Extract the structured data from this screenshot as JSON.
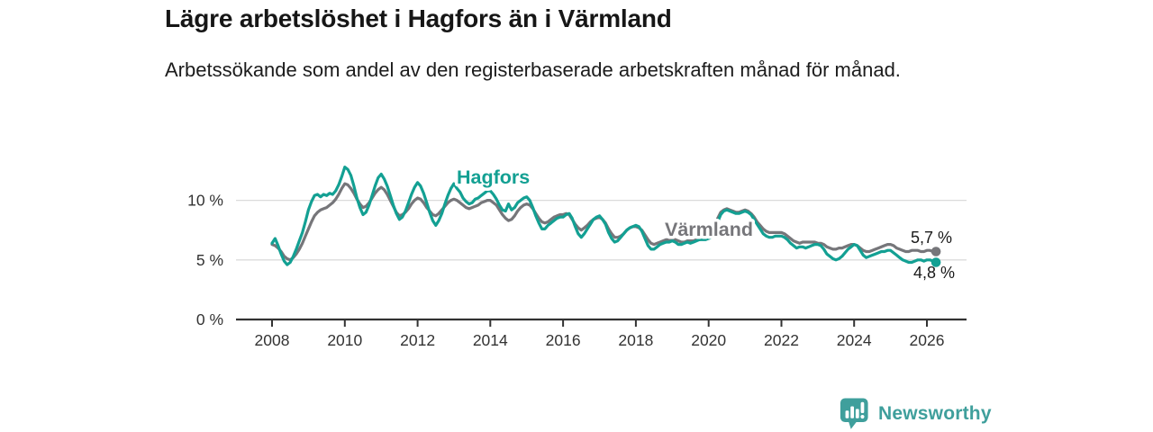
{
  "header": {
    "title": "Lägre arbetslöshet i Hagfors än i Värmland",
    "subtitle": "Arbetssökande som andel av den registerbaserade arbetskraften månad för månad."
  },
  "footer": {
    "brand": "Newsworthy",
    "brand_color": "#3f9f9c",
    "logo_icon": "bar-chart-speech-bubble"
  },
  "chart_data": {
    "type": "line",
    "title": "Lägre arbetslöshet i Hagfors än i Värmland",
    "subtitle": "Arbetssökande som andel av den registerbaserade arbetskraften månad för månad.",
    "unit": "%",
    "grid": "horizontal-only",
    "legend": "inline-labels",
    "x_unit": "month",
    "x_range": {
      "start_year": 2008,
      "start_month": 1,
      "end_year": 2026,
      "end_month": 4
    },
    "xlim_years": [
      2007.0,
      2027.1
    ],
    "ylim": [
      0,
      13.8
    ],
    "x_tick_labels": [
      "2008",
      "2010",
      "2012",
      "2014",
      "2016",
      "2018",
      "2020",
      "2022",
      "2024",
      "2026"
    ],
    "y_ticks": [
      0,
      5,
      10
    ],
    "y_tick_labels": [
      "0 %",
      "5 %",
      "10 %"
    ],
    "colors": {
      "hagfors": "#13a093",
      "varmland": "#76767a",
      "grid": "#dbdbdb",
      "axis": "#333333"
    },
    "series": [
      {
        "name": "Hagfors",
        "color": "#13a093",
        "end_label": "4,8 %",
        "last_value": 4.8,
        "values": [
          6.4,
          6.8,
          6.2,
          5.5,
          4.9,
          4.6,
          4.8,
          5.3,
          5.9,
          6.6,
          7.3,
          8.2,
          9.2,
          9.9,
          10.4,
          10.5,
          10.3,
          10.5,
          10.4,
          10.6,
          10.5,
          10.8,
          11.3,
          12.0,
          12.8,
          12.6,
          12.1,
          11.2,
          10.2,
          9.4,
          8.8,
          9.0,
          9.6,
          10.4,
          11.2,
          11.9,
          12.2,
          11.8,
          11.2,
          10.4,
          9.6,
          8.9,
          8.4,
          8.6,
          9.1,
          9.8,
          10.5,
          11.1,
          11.5,
          11.2,
          10.6,
          9.8,
          9.0,
          8.3,
          7.9,
          8.3,
          8.9,
          9.7,
          10.4,
          11.0,
          11.4,
          11.0,
          10.7,
          10.2,
          9.9,
          9.7,
          9.8,
          10.1,
          10.2,
          10.4,
          10.6,
          10.8,
          10.8,
          10.5,
          10.1,
          9.6,
          9.2,
          9.1,
          9.7,
          9.2,
          9.4,
          9.8,
          10.0,
          10.2,
          10.3,
          10.0,
          9.4,
          8.7,
          8.1,
          7.6,
          7.6,
          7.9,
          8.1,
          8.3,
          8.5,
          8.6,
          8.6,
          8.8,
          8.9,
          8.5,
          7.8,
          7.2,
          6.9,
          7.2,
          7.6,
          8.0,
          8.4,
          8.6,
          8.7,
          8.4,
          8.0,
          7.3,
          6.8,
          6.5,
          6.6,
          6.9,
          7.2,
          7.5,
          7.7,
          7.8,
          7.9,
          7.8,
          7.4,
          6.8,
          6.2,
          5.9,
          5.9,
          6.1,
          6.3,
          6.4,
          6.5,
          6.5,
          6.6,
          6.5,
          6.3,
          6.3,
          6.4,
          6.5,
          6.4,
          6.5,
          6.6,
          6.7,
          6.7,
          6.7,
          6.8,
          6.9,
          7.4,
          8.2,
          8.8,
          9.1,
          9.2,
          9.1,
          9.0,
          8.9,
          8.9,
          9.0,
          9.1,
          9.0,
          8.8,
          8.4,
          8.0,
          7.6,
          7.2,
          7.0,
          6.9,
          6.9,
          7.0,
          7.0,
          7.0,
          6.9,
          6.7,
          6.4,
          6.2,
          6.0,
          6.1,
          6.1,
          6.0,
          6.1,
          6.2,
          6.3,
          6.3,
          6.2,
          5.9,
          5.5,
          5.3,
          5.1,
          5.0,
          5.1,
          5.3,
          5.6,
          5.9,
          6.1,
          6.3,
          6.2,
          5.8,
          5.4,
          5.2,
          5.3,
          5.4,
          5.5,
          5.6,
          5.7,
          5.7,
          5.8,
          5.8,
          5.6,
          5.4,
          5.2,
          5.0,
          4.9,
          4.8,
          4.8,
          4.9,
          5.0,
          5.0,
          4.9,
          5.0,
          5.0,
          4.9,
          4.8
        ]
      },
      {
        "name": "Värmland",
        "color": "#76767a",
        "end_label": "5,7 %",
        "last_value": 5.7,
        "values": [
          6.3,
          6.2,
          6.0,
          5.7,
          5.3,
          5.1,
          5.0,
          5.2,
          5.5,
          5.9,
          6.4,
          7.0,
          7.6,
          8.2,
          8.7,
          9.0,
          9.2,
          9.3,
          9.4,
          9.6,
          9.8,
          10.1,
          10.5,
          11.0,
          11.4,
          11.3,
          11.0,
          10.6,
          10.1,
          9.7,
          9.4,
          9.5,
          9.8,
          10.2,
          10.6,
          10.9,
          11.1,
          10.9,
          10.5,
          10.0,
          9.5,
          9.0,
          8.7,
          8.8,
          9.0,
          9.3,
          9.7,
          10.0,
          10.2,
          10.1,
          9.8,
          9.4,
          9.1,
          8.8,
          8.7,
          8.9,
          9.2,
          9.5,
          9.8,
          10.0,
          10.1,
          10.0,
          9.8,
          9.6,
          9.4,
          9.3,
          9.4,
          9.5,
          9.6,
          9.8,
          9.9,
          10.0,
          10.0,
          9.8,
          9.6,
          9.2,
          8.8,
          8.5,
          8.3,
          8.4,
          8.7,
          9.1,
          9.4,
          9.6,
          9.7,
          9.6,
          9.3,
          8.9,
          8.5,
          8.2,
          8.1,
          8.2,
          8.4,
          8.6,
          8.7,
          8.8,
          8.8,
          8.9,
          8.8,
          8.4,
          8.0,
          7.7,
          7.5,
          7.7,
          7.9,
          8.2,
          8.4,
          8.5,
          8.6,
          8.4,
          8.1,
          7.6,
          7.2,
          6.9,
          6.9,
          7.0,
          7.2,
          7.5,
          7.7,
          7.8,
          7.8,
          7.7,
          7.5,
          7.1,
          6.7,
          6.4,
          6.3,
          6.4,
          6.5,
          6.6,
          6.7,
          6.7,
          6.8,
          6.7,
          6.6,
          6.5,
          6.5,
          6.6,
          6.6,
          6.6,
          6.7,
          6.7,
          6.8,
          6.8,
          6.9,
          7.0,
          7.6,
          8.5,
          9.0,
          9.2,
          9.3,
          9.2,
          9.1,
          9.0,
          9.0,
          9.1,
          9.2,
          9.1,
          8.9,
          8.6,
          8.2,
          7.9,
          7.6,
          7.4,
          7.3,
          7.3,
          7.3,
          7.3,
          7.3,
          7.2,
          7.0,
          6.8,
          6.6,
          6.5,
          6.4,
          6.5,
          6.5,
          6.5,
          6.5,
          6.5,
          6.4,
          6.4,
          6.3,
          6.1,
          6.0,
          5.9,
          5.9,
          6.0,
          6.0,
          6.1,
          6.2,
          6.3,
          6.3,
          6.2,
          6.0,
          5.8,
          5.7,
          5.7,
          5.8,
          5.9,
          6.0,
          6.1,
          6.2,
          6.3,
          6.3,
          6.2,
          6.0,
          5.9,
          5.8,
          5.7,
          5.7,
          5.8,
          5.8,
          5.8,
          5.7,
          5.7,
          5.8,
          5.8,
          5.7,
          5.7
        ]
      }
    ]
  }
}
